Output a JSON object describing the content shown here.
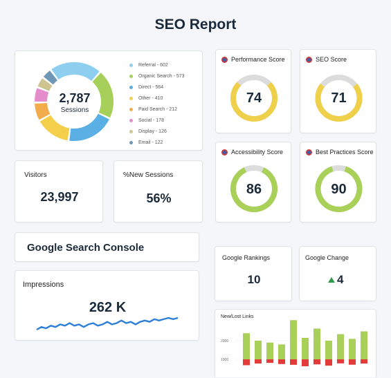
{
  "report": {
    "title": "SEO Report"
  },
  "sessions": {
    "total": "2,787",
    "label": "Sessions",
    "legend": [
      {
        "label": "Referral - 602",
        "color": "#8ecff0",
        "value": 602
      },
      {
        "label": "Organic Search - 573",
        "color": "#a6d05a",
        "value": 573
      },
      {
        "label": "Direct - 564",
        "color": "#5aafe4",
        "value": 564
      },
      {
        "label": "Other - 410",
        "color": "#f3cf4b",
        "value": 410
      },
      {
        "label": "Paid Search - 212",
        "color": "#f3ac4b",
        "value": 212
      },
      {
        "label": "Social - 178",
        "color": "#e48ccc",
        "value": 178
      },
      {
        "label": "Display - 126",
        "color": "#cdc491",
        "value": 126
      },
      {
        "label": "Email - 122",
        "color": "#6f97b5",
        "value": 122
      }
    ]
  },
  "visitors": {
    "label": "Visitors",
    "value": "23,997"
  },
  "new_sessions": {
    "label": "%New Sessions",
    "value": "56%"
  },
  "gsc": {
    "title": "Google Search Console"
  },
  "impressions": {
    "label": "Impressions",
    "value": "262 K",
    "sparkline": [
      4,
      6,
      5,
      7,
      6,
      8,
      7,
      9,
      7,
      8,
      6,
      8,
      9,
      7,
      8,
      10,
      8,
      9,
      11,
      9,
      10,
      8,
      10,
      11,
      10,
      12,
      11,
      12,
      13,
      12,
      13
    ]
  },
  "scores": [
    {
      "label": "Performance Score",
      "value": "74",
      "pct": 0.74,
      "color": "#efd04a"
    },
    {
      "label": "SEO Score",
      "value": "71",
      "pct": 0.71,
      "color": "#efd04a"
    },
    {
      "label": "Accessibility Score",
      "value": "86",
      "pct": 0.86,
      "color": "#a9d058"
    },
    {
      "label": "Best Practices Score",
      "value": "90",
      "pct": 0.9,
      "color": "#a9d058"
    }
  ],
  "rankings": {
    "label": "Google Rankings",
    "value": "10"
  },
  "change": {
    "label": "Google Change",
    "value": "4",
    "arrow_color": "#2e9b48"
  },
  "links": {
    "title": "New/Lost Links",
    "y_ticks": [
      "2000",
      "1000"
    ],
    "new": [
      1400,
      1000,
      900,
      800,
      2100,
      1150,
      1650,
      1000,
      1350,
      1100,
      1500
    ],
    "lost": [
      700,
      500,
      420,
      560,
      650,
      820,
      600,
      750,
      480,
      640,
      500
    ]
  },
  "colors": {
    "new_link": "#a9d058",
    "lost_link": "#e33a3a",
    "ring_track": "#dcdcdc",
    "sparkline": "#2c7fd8"
  }
}
